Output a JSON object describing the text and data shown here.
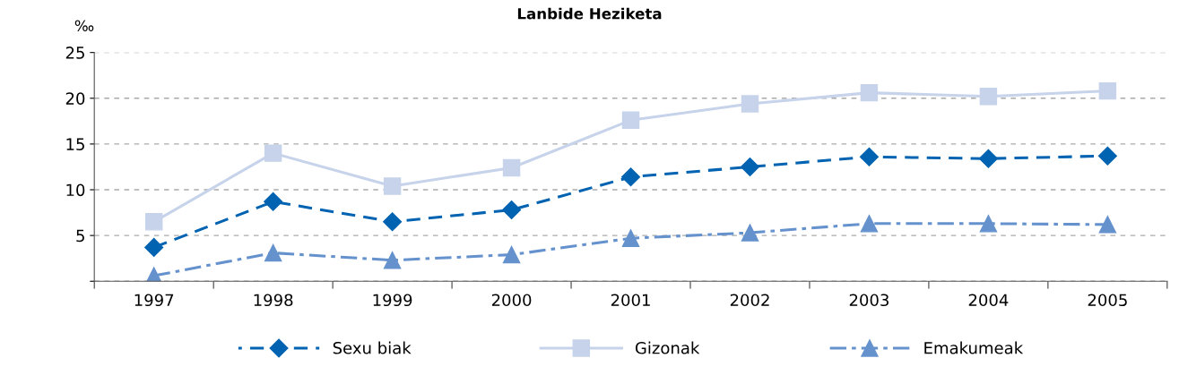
{
  "chart_data": {
    "type": "line",
    "title": "Lanbide Heziketa",
    "ylabel": "‰",
    "categories": [
      "1997",
      "1998",
      "1999",
      "2000",
      "2001",
      "2002",
      "2003",
      "2004",
      "2005"
    ],
    "series": [
      {
        "name": "Sexu biak",
        "color": "#0063b1",
        "marker": "diamond",
        "line_style": "dashed",
        "values": [
          3.7,
          8.7,
          6.5,
          7.8,
          11.4,
          12.5,
          13.6,
          13.4,
          13.7
        ]
      },
      {
        "name": "Gizonak",
        "color": "#c6d3ea",
        "marker": "square",
        "line_style": "solid",
        "values": [
          6.5,
          14.0,
          10.4,
          12.4,
          17.6,
          19.4,
          20.6,
          20.2,
          20.8
        ]
      },
      {
        "name": "Emakumeak",
        "color": "#6592cd",
        "marker": "triangle",
        "line_style": "dashdot",
        "values": [
          0.6,
          3.1,
          2.3,
          2.9,
          4.7,
          5.3,
          6.3,
          6.3,
          6.2
        ]
      }
    ],
    "ylim": [
      0,
      25
    ],
    "yticks": [
      {
        "value": 0,
        "label": null
      },
      5,
      10,
      15,
      20,
      25
    ],
    "grid": "y",
    "legend": "bottom"
  }
}
